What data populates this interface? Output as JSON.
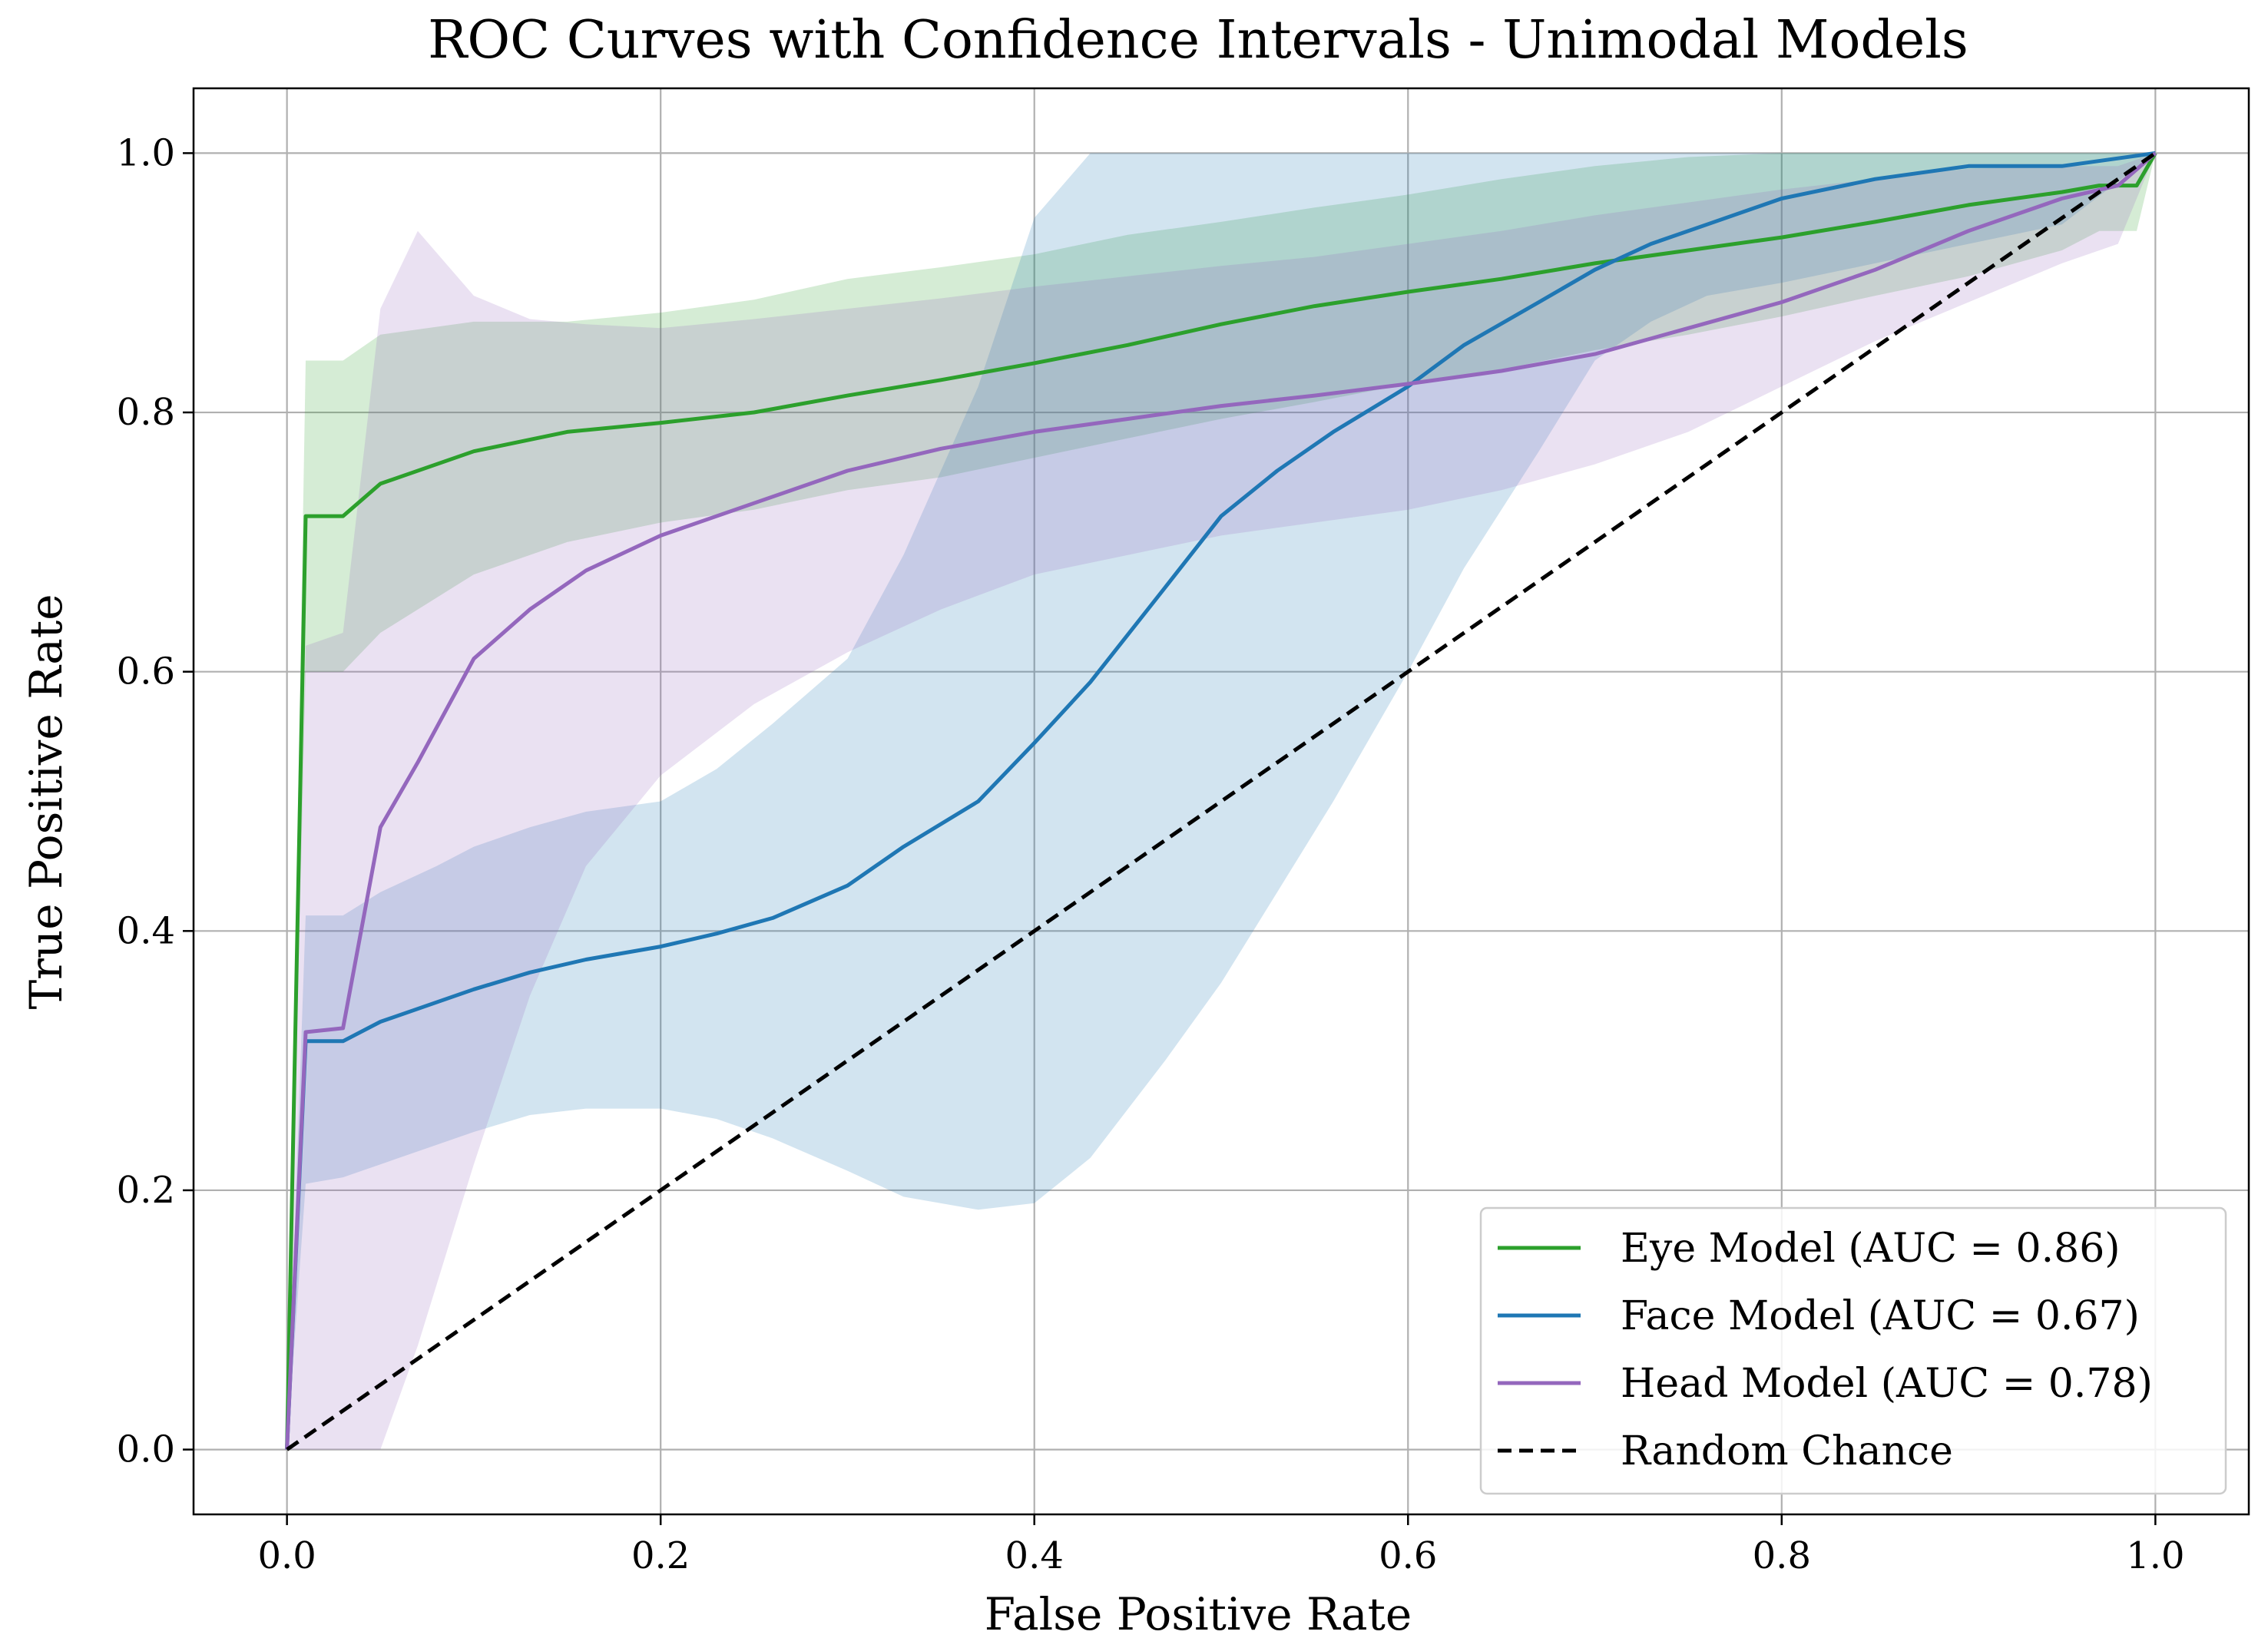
{
  "chart_data": {
    "type": "line",
    "title": "ROC Curves with Confidence Intervals - Unimodal Models",
    "xlabel": "False Positive Rate",
    "ylabel": "True Positive Rate",
    "xlim": [
      -0.05,
      1.05
    ],
    "ylim": [
      -0.05,
      1.05
    ],
    "xticks": [
      0.0,
      0.2,
      0.4,
      0.6,
      0.8,
      1.0
    ],
    "xtick_labels": [
      "0.0",
      "0.2",
      "0.4",
      "0.6",
      "0.8",
      "1.0"
    ],
    "yticks": [
      0.0,
      0.2,
      0.4,
      0.6,
      0.8,
      1.0
    ],
    "ytick_labels": [
      "0.0",
      "0.2",
      "0.4",
      "0.6",
      "0.8",
      "1.0"
    ],
    "grid": true,
    "legend_position": "lower-right",
    "series": [
      {
        "name": "Eye Model (AUC = 0.86)",
        "color": "#2ca02c",
        "style": "solid",
        "x": [
          0.0,
          0.01,
          0.03,
          0.05,
          0.1,
          0.15,
          0.2,
          0.25,
          0.3,
          0.35,
          0.4,
          0.45,
          0.5,
          0.55,
          0.6,
          0.65,
          0.7,
          0.75,
          0.8,
          0.85,
          0.9,
          0.95,
          0.97,
          0.99,
          1.0
        ],
        "y": [
          0.0,
          0.72,
          0.72,
          0.745,
          0.77,
          0.785,
          0.792,
          0.8,
          0.813,
          0.825,
          0.838,
          0.852,
          0.868,
          0.882,
          0.893,
          0.903,
          0.915,
          0.925,
          0.935,
          0.947,
          0.96,
          0.97,
          0.975,
          0.975,
          1.0
        ],
        "ci_lower": [
          0.0,
          0.6,
          0.6,
          0.63,
          0.675,
          0.7,
          0.715,
          0.725,
          0.74,
          0.75,
          0.765,
          0.78,
          0.795,
          0.808,
          0.822,
          0.833,
          0.848,
          0.86,
          0.874,
          0.89,
          0.905,
          0.925,
          0.94,
          0.94,
          1.0
        ],
        "ci_upper": [
          0.0,
          0.84,
          0.84,
          0.86,
          0.87,
          0.87,
          0.877,
          0.887,
          0.903,
          0.912,
          0.922,
          0.937,
          0.947,
          0.958,
          0.968,
          0.98,
          0.99,
          0.997,
          1.0,
          1.0,
          1.0,
          1.0,
          1.0,
          1.0,
          1.0
        ]
      },
      {
        "name": "Face Model (AUC = 0.67)",
        "color": "#1f77b4",
        "style": "solid",
        "x": [
          0.0,
          0.01,
          0.03,
          0.05,
          0.08,
          0.1,
          0.13,
          0.16,
          0.2,
          0.23,
          0.26,
          0.3,
          0.33,
          0.37,
          0.4,
          0.43,
          0.47,
          0.5,
          0.53,
          0.56,
          0.6,
          0.63,
          0.67,
          0.7,
          0.73,
          0.76,
          0.8,
          0.85,
          0.9,
          0.95,
          1.0
        ],
        "y": [
          0.0,
          0.315,
          0.315,
          0.33,
          0.345,
          0.355,
          0.368,
          0.378,
          0.388,
          0.398,
          0.41,
          0.435,
          0.465,
          0.5,
          0.545,
          0.592,
          0.665,
          0.72,
          0.755,
          0.785,
          0.82,
          0.852,
          0.885,
          0.91,
          0.93,
          0.945,
          0.965,
          0.98,
          0.99,
          0.99,
          1.0
        ],
        "ci_lower": [
          0.0,
          0.205,
          0.21,
          0.22,
          0.235,
          0.245,
          0.258,
          0.263,
          0.263,
          0.255,
          0.24,
          0.215,
          0.195,
          0.185,
          0.19,
          0.225,
          0.3,
          0.36,
          0.43,
          0.5,
          0.6,
          0.68,
          0.77,
          0.84,
          0.87,
          0.89,
          0.9,
          0.915,
          0.93,
          0.945,
          1.0
        ],
        "ci_upper": [
          0.0,
          0.412,
          0.412,
          0.43,
          0.45,
          0.465,
          0.48,
          0.492,
          0.5,
          0.525,
          0.56,
          0.61,
          0.69,
          0.82,
          0.95,
          1.0,
          1.0,
          1.0,
          1.0,
          1.0,
          1.0,
          1.0,
          1.0,
          1.0,
          1.0,
          1.0,
          1.0,
          1.0,
          1.0,
          1.0,
          1.0
        ]
      },
      {
        "name": "Head Model (AUC = 0.78)",
        "color": "#9467bd",
        "style": "solid",
        "x": [
          0.0,
          0.01,
          0.03,
          0.05,
          0.07,
          0.1,
          0.13,
          0.16,
          0.2,
          0.25,
          0.3,
          0.35,
          0.4,
          0.45,
          0.5,
          0.55,
          0.6,
          0.65,
          0.7,
          0.75,
          0.8,
          0.85,
          0.9,
          0.95,
          0.98,
          1.0
        ],
        "y": [
          0.0,
          0.322,
          0.325,
          0.48,
          0.53,
          0.61,
          0.648,
          0.678,
          0.705,
          0.73,
          0.755,
          0.772,
          0.785,
          0.795,
          0.805,
          0.813,
          0.822,
          0.832,
          0.845,
          0.865,
          0.885,
          0.91,
          0.94,
          0.965,
          0.975,
          1.0
        ],
        "ci_lower": [
          0.0,
          0.0,
          0.0,
          0.0,
          0.08,
          0.22,
          0.35,
          0.45,
          0.52,
          0.575,
          0.615,
          0.648,
          0.675,
          0.69,
          0.705,
          0.715,
          0.725,
          0.74,
          0.76,
          0.785,
          0.82,
          0.855,
          0.885,
          0.915,
          0.93,
          1.0
        ],
        "ci_upper": [
          0.0,
          0.62,
          0.63,
          0.88,
          0.94,
          0.89,
          0.872,
          0.868,
          0.865,
          0.872,
          0.88,
          0.888,
          0.897,
          0.905,
          0.913,
          0.92,
          0.93,
          0.94,
          0.952,
          0.962,
          0.972,
          0.98,
          0.988,
          0.99,
          0.99,
          1.0
        ]
      },
      {
        "name": "Random Chance",
        "color": "#000000",
        "style": "dashed",
        "x": [
          0.0,
          1.0
        ],
        "y": [
          0.0,
          1.0
        ]
      }
    ]
  }
}
